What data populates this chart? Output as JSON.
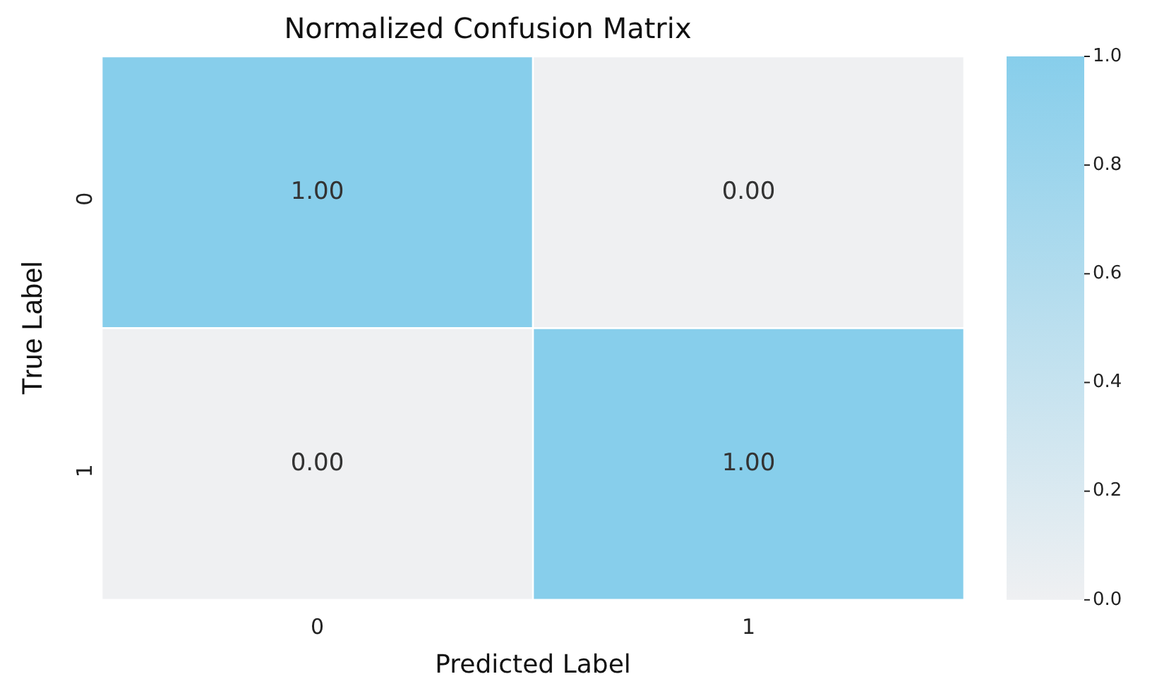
{
  "chart_data": {
    "type": "heatmap",
    "title": "Normalized Confusion Matrix",
    "xlabel": "Predicted Label",
    "ylabel": "True Label",
    "categories": [
      "0",
      "1"
    ],
    "y_categories": [
      "0",
      "1"
    ],
    "cells": [
      [
        1.0,
        0.0
      ],
      [
        0.0,
        1.0
      ]
    ],
    "cell_labels": [
      [
        "1.00",
        "0.00"
      ],
      [
        "0.00",
        "1.00"
      ]
    ],
    "colors": [
      "#eff0f2",
      "#87ceeb"
    ],
    "clim": [
      0,
      1
    ],
    "cticks": [
      {
        "value": 0,
        "label": "0.0"
      },
      {
        "value": 0.2,
        "label": "0.2"
      },
      {
        "value": 0.4,
        "label": "0.4"
      },
      {
        "value": 0.6,
        "label": "0.6"
      },
      {
        "value": 0.8,
        "label": "0.8"
      },
      {
        "value": 1,
        "label": "1.0"
      }
    ]
  }
}
